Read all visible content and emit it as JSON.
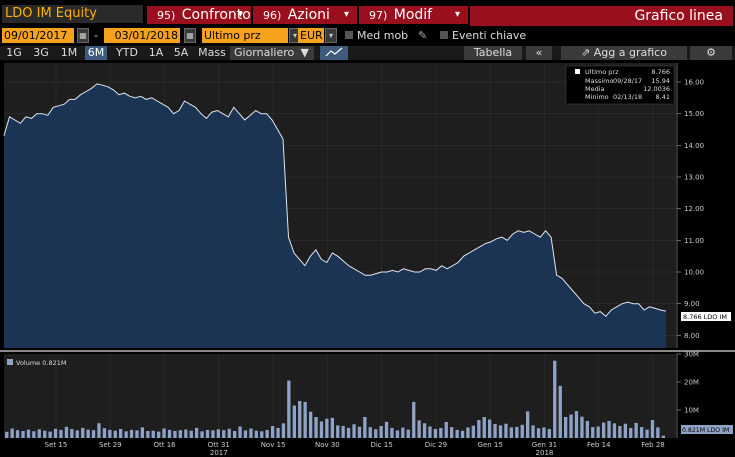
{
  "topbar": {
    "ticker": "LDO IM Equity",
    "menus": [
      {
        "num": "95)",
        "label": "Confronto"
      },
      {
        "num": "96)",
        "label": "Azioni"
      },
      {
        "num": "97)",
        "label": "Modif"
      }
    ],
    "title": "Grafico linea"
  },
  "controls": {
    "start_date": "09/01/2017",
    "dash": "-",
    "end_date": "03/01/2018",
    "field": "Ultimo prz",
    "currency": "EUR",
    "med_mob": "Med mob",
    "eventi": "Eventi chiave"
  },
  "periods": [
    "1G",
    "3G",
    "1M",
    "6M",
    "YTD",
    "1A",
    "5A",
    "Mass"
  ],
  "selected_period": "6M",
  "frequency": "Giornaliero",
  "tabella": "Tabella",
  "collapse": "«",
  "add_chart": "Agg a grafico",
  "icons": {
    "calendar": "calendar-icon",
    "gear": "gear-icon",
    "pencil": "pencil-icon",
    "line_tool": "line-chart-icon",
    "add": "add-to-chart-icon"
  },
  "colors": {
    "accent_red": "#9a0f1d",
    "accent_orange": "#f7a21c",
    "area_fill": "#1b3454",
    "area_line": "#dfe6ee",
    "volume_bar": "#8fa3c6"
  },
  "chart_data": [
    {
      "type": "area",
      "series": [
        {
          "name": "Ultimo prz",
          "values": [
            14.3,
            14.9,
            14.8,
            14.7,
            14.9,
            14.85,
            15.0,
            15.0,
            14.95,
            15.2,
            15.25,
            15.3,
            15.45,
            15.45,
            15.6,
            15.7,
            15.8,
            15.94,
            15.9,
            15.85,
            15.75,
            15.6,
            15.65,
            15.55,
            15.5,
            15.55,
            15.45,
            15.5,
            15.4,
            15.3,
            15.2,
            15.0,
            15.1,
            15.4,
            15.3,
            15.2,
            15.0,
            14.85,
            15.05,
            15.1,
            15.0,
            14.9,
            15.2,
            15.0,
            14.8,
            14.95,
            15.1,
            15.0,
            15.0,
            14.8,
            14.5,
            14.2,
            11.1,
            10.6,
            10.4,
            10.2,
            10.5,
            10.7,
            10.4,
            10.3,
            10.6,
            10.5,
            10.35,
            10.2,
            10.1,
            10.0,
            9.9,
            9.9,
            9.95,
            10.0,
            10.0,
            10.05,
            10.0,
            10.1,
            10.05,
            10.0,
            10.0,
            10.1,
            10.1,
            10.05,
            10.2,
            10.1,
            10.2,
            10.3,
            10.5,
            10.6,
            10.7,
            10.8,
            10.9,
            10.95,
            11.05,
            11.1,
            11.0,
            11.2,
            11.3,
            11.25,
            11.3,
            11.2,
            11.1,
            11.3,
            11.1,
            9.9,
            9.8,
            9.6,
            9.4,
            9.2,
            9.0,
            8.9,
            8.7,
            8.75,
            8.6,
            8.8,
            8.9,
            9.0,
            9.05,
            9.0,
            9.0,
            8.8,
            8.9,
            8.85,
            8.8,
            8.766
          ]
        }
      ],
      "x_ticks": [
        "Set 15",
        "Set 29",
        "Ott 16",
        "Ott 31",
        "Nov 15",
        "Nov 30",
        "Dic 15",
        "Dic 29",
        "Gen 15",
        "Gen 31",
        "Feb 14",
        "Feb 28"
      ],
      "x_tick_years": {
        "Ott 31": "2017",
        "Gen 31": "2018"
      },
      "y_ticks": [
        "8.00",
        "9.00",
        "10.00",
        "11.00",
        "12.00",
        "13.00",
        "14.00",
        "15.00",
        "16.00"
      ],
      "ylim": [
        7.6,
        16.6
      ],
      "last_label": "8.766 LDO IM",
      "legend": [
        {
          "label": "Ultimo prz",
          "date": "",
          "value": "8.766"
        },
        {
          "label": "Massimo",
          "date": "09/28/17",
          "value": "15.94"
        },
        {
          "label": "Media",
          "date": "",
          "value": "12.0036"
        },
        {
          "label": "Minimo",
          "date": "02/13/18",
          "value": "8.41"
        }
      ]
    },
    {
      "type": "bar",
      "series": [
        {
          "name": "Volume",
          "values": [
            2.2,
            3.4,
            2.8,
            2.5,
            3.0,
            2.4,
            3.1,
            2.6,
            2.3,
            3.3,
            2.9,
            4.0,
            3.2,
            2.7,
            3.6,
            3.0,
            2.8,
            5.3,
            3.5,
            2.9,
            2.6,
            3.2,
            2.4,
            2.9,
            2.7,
            3.8,
            2.5,
            2.6,
            2.3,
            3.4,
            2.9,
            2.5,
            2.8,
            3.0,
            2.6,
            3.6,
            2.4,
            2.9,
            2.7,
            3.1,
            2.8,
            3.3,
            2.5,
            4.1,
            2.7,
            3.4,
            2.6,
            2.4,
            2.9,
            4.3,
            3.6,
            5.2,
            20.5,
            11.6,
            13.2,
            12.9,
            9.4,
            7.5,
            5.9,
            6.9,
            7.2,
            4.5,
            4.3,
            3.6,
            4.9,
            4.0,
            7.5,
            3.9,
            3.1,
            4.3,
            5.8,
            3.6,
            2.7,
            3.7,
            3.0,
            12.9,
            6.3,
            5.3,
            4.1,
            3.2,
            3.6,
            5.7,
            3.9,
            2.9,
            2.6,
            3.8,
            4.4,
            6.4,
            7.5,
            6.6,
            5.0,
            4.5,
            5.1,
            3.8,
            4.0,
            4.7,
            9.5,
            4.5,
            3.5,
            3.8,
            3.2,
            27.6,
            18.6,
            7.5,
            8.4,
            9.6,
            7.6,
            6.1,
            3.9,
            4.1,
            5.5,
            6.1,
            5.2,
            4.3,
            5.1,
            3.6,
            5.4,
            3.9,
            3.0,
            6.4,
            3.8,
            0.821
          ]
        }
      ],
      "y_ticks": [
        "10M",
        "20M",
        "30M"
      ],
      "ylim": [
        0,
        30
      ],
      "legend": "Volume 0.821M",
      "last_label": "0.821M LDO IM"
    }
  ]
}
